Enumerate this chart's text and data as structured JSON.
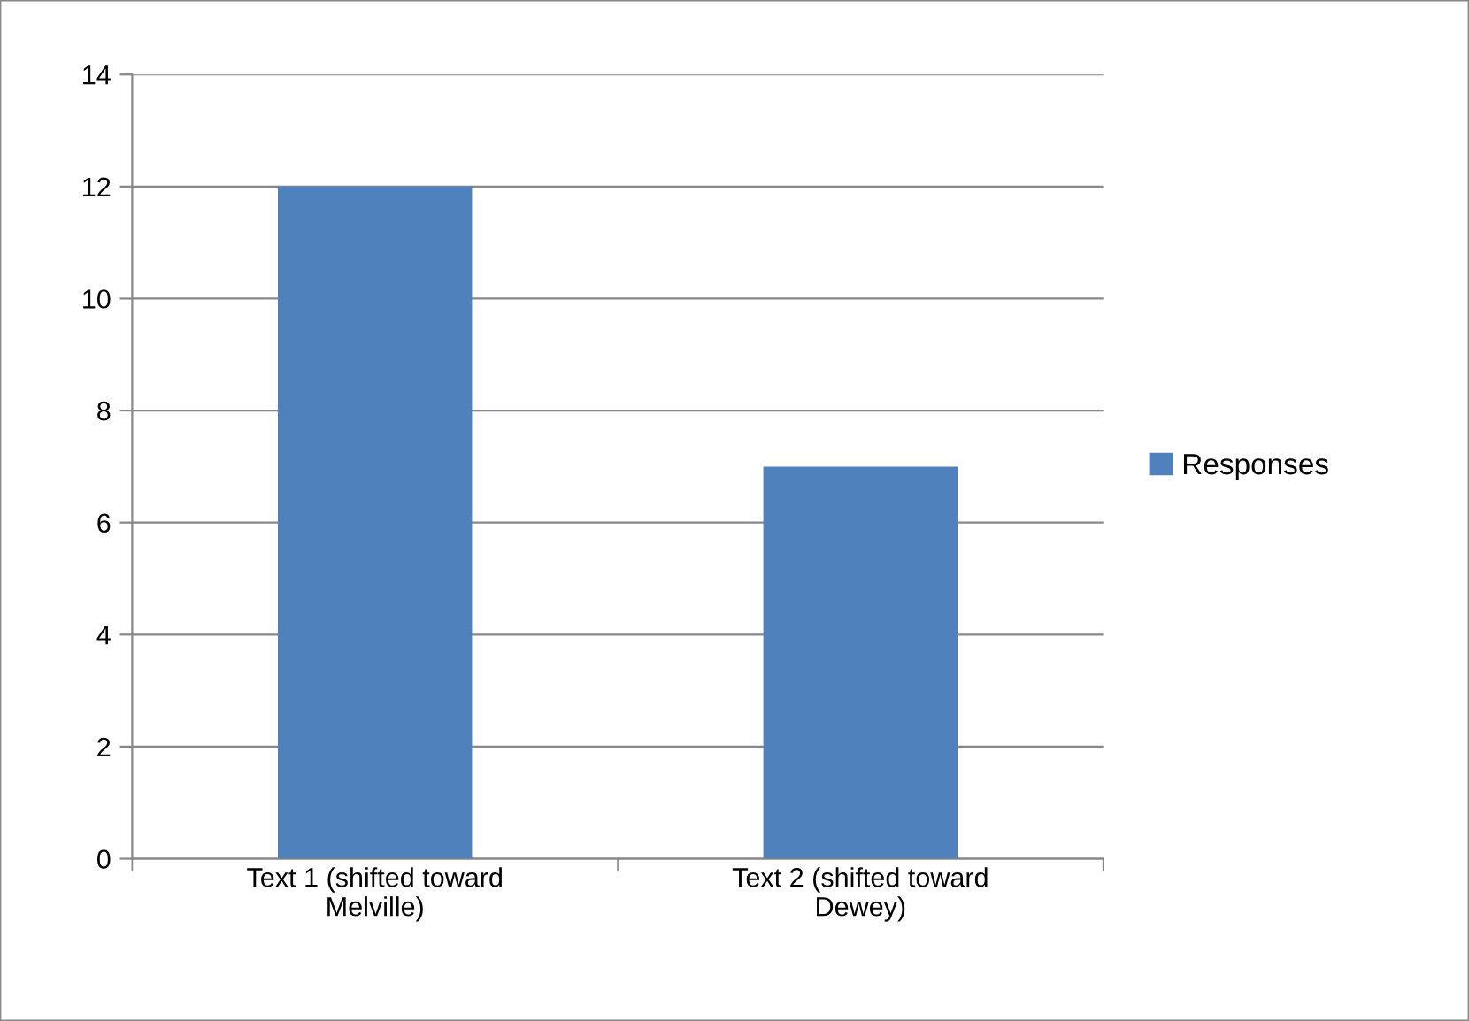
{
  "chart_data": {
    "type": "bar",
    "categories": [
      "Text 1 (shifted toward Melville)",
      "Text 2 (shifted toward Dewey)"
    ],
    "series": [
      {
        "name": "Responses",
        "color": "#4f81bd",
        "values": [
          12,
          7
        ]
      }
    ],
    "ylim": [
      0,
      14
    ],
    "yticks": [
      0,
      2,
      4,
      6,
      8,
      10,
      12,
      14
    ],
    "grid": "y",
    "legend": "right"
  }
}
